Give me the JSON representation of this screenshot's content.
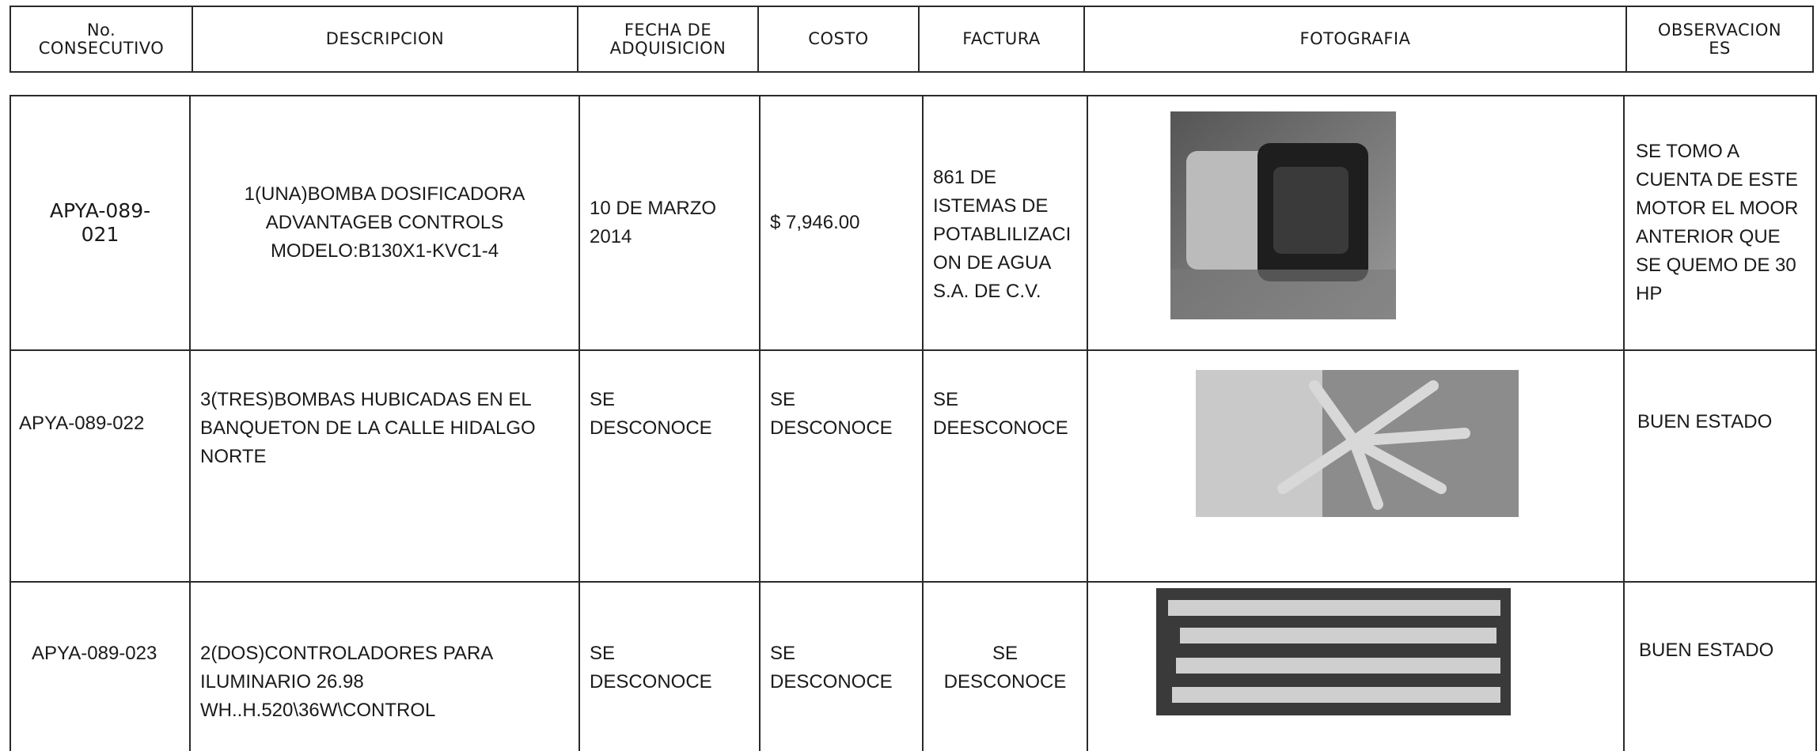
{
  "table": {
    "header": [
      "No.\nCONSECUTIVO",
      "DESCRIPCION",
      "FECHA DE\nADQUISICION",
      "COSTO",
      "FACTURA",
      "FOTOGRAFIA",
      "OBSERVACION\nES"
    ],
    "rows": [
      [
        "APYA-089-\n021",
        "1(UNA)BOMBA DOSIFICADORA\nADVANTAGEB CONTROLS\nMODELO:B130X1-KVC1-4",
        "10 DE MARZO\n2014",
        "$  7,946.00",
        "861 DE\nISTEMAS DE\nPOTABLILIZACI\nON DE AGUA\nS.A. DE C.V.",
        "SE TOMO A\nCUENTA DE ESTE\nMOTOR EL MOOR\nANTERIOR QUE\nSE QUEMO DE 30\nHP"
      ],
      [
        "APYA-089-022",
        "3(TRES)BOMBAS HUBICADAS EN EL\nBANQUETON DE LA CALLE HIDALGO\nNORTE",
        "SE\nDESCONOCE",
        "SE\nDESCONOCE",
        "SE\nDEESCONOCE",
        "BUEN ESTADO"
      ],
      [
        "APYA-089-023",
        "2(DOS)CONTROLADORES PARA\nILUMINARIO  26.98\nWH..H.520\\36W\\CONTROL",
        "SE\nDESCONOCE",
        "SE\nDESCONOCE",
        "SE\nDESCONOCE",
        "BUEN ESTADO"
      ]
    ]
  }
}
